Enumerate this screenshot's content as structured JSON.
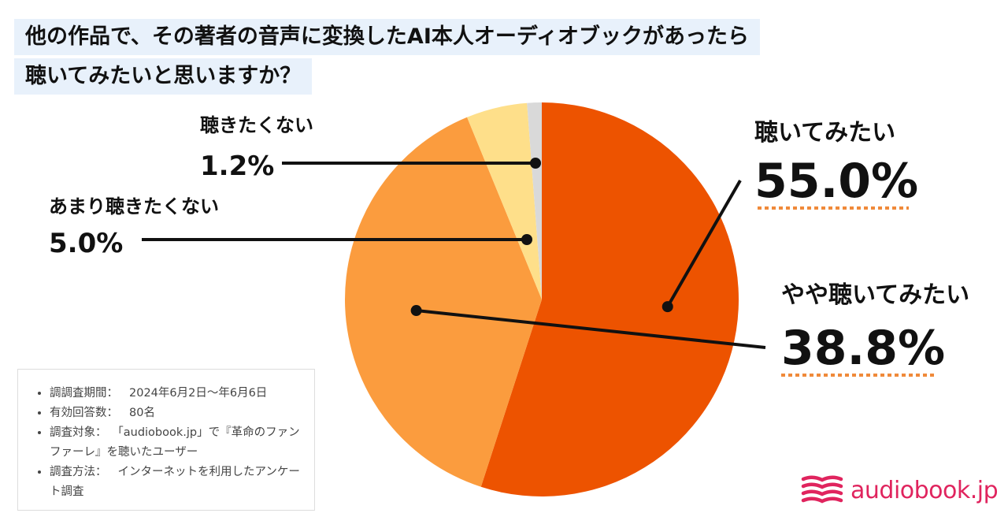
{
  "title": {
    "line1": "他の作品で、その著者の音声に変換したAI本人オーディオブックがあったら",
    "line2": "聴いてみたいと思いますか？"
  },
  "chart_data": {
    "type": "pie",
    "slices": [
      {
        "label": "聴いてみたい",
        "value": 55.0,
        "display": "55.0%",
        "color": "#ed5300"
      },
      {
        "label": "やや聴いてみたい",
        "value": 38.8,
        "display": "38.8%",
        "color": "#fb9c3e"
      },
      {
        "label": "あまり聴きたくない",
        "value": 5.0,
        "display": "5.0%",
        "color": "#fedf8a"
      },
      {
        "label": "聴きたくない",
        "value": 1.2,
        "display": "1.2%",
        "color": "#d9d9d9"
      }
    ],
    "start_angle": "12 o'clock",
    "direction": "clockwise"
  },
  "survey": {
    "items": [
      {
        "label": "調調査期間：",
        "value": "2024年6月2日〜年6月6日"
      },
      {
        "label": "有効回答数：",
        "value": "80名"
      },
      {
        "label": "調査対象：",
        "value": "「audiobook.jp」で『革命のファンファーレ』を聴いたユーザー"
      },
      {
        "label": "調査方法：",
        "value": "インターネットを利用したアンケート調査"
      }
    ]
  },
  "brand": {
    "name": "audiobook.jp",
    "color": "#e0245e",
    "icon": "book-pages-icon"
  },
  "accent": {
    "underline_color": "#f08a3a"
  }
}
